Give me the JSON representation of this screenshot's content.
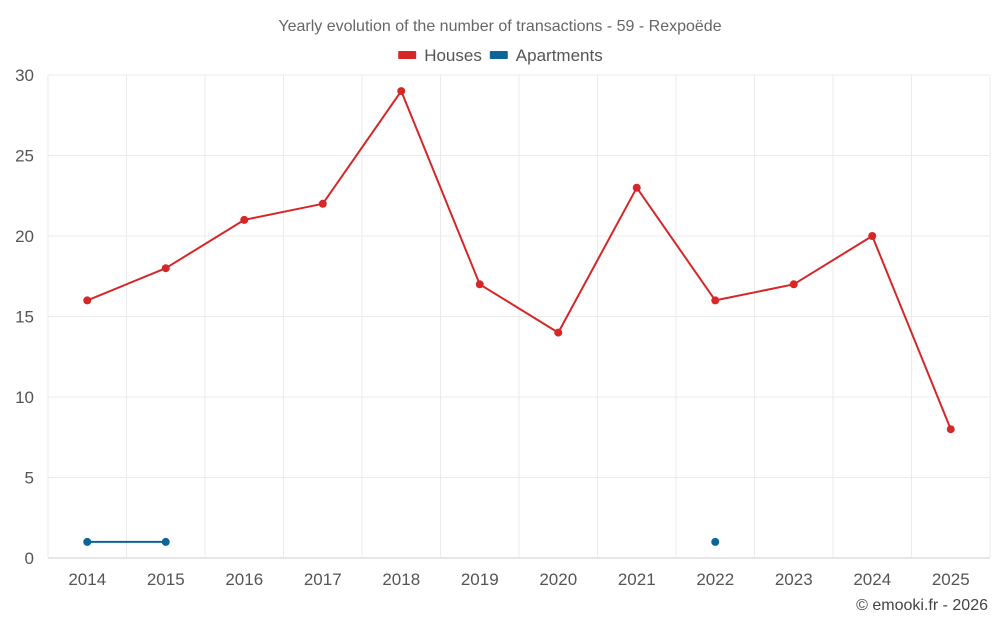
{
  "chart_data": {
    "type": "line",
    "title": "Yearly evolution of the number of transactions - 59 - Rexpoëde",
    "xlabel": "",
    "ylabel": "",
    "categories": [
      "2014",
      "2015",
      "2016",
      "2017",
      "2018",
      "2019",
      "2020",
      "2021",
      "2022",
      "2023",
      "2024",
      "2025"
    ],
    "ylim": [
      0,
      30
    ],
    "yticks": [
      0,
      5,
      10,
      15,
      20,
      25,
      30
    ],
    "grid": true,
    "legend_position": "top-center",
    "series": [
      {
        "name": "Houses",
        "color": "#d62728",
        "values": [
          16,
          18,
          21,
          22,
          29,
          17,
          14,
          23,
          16,
          17,
          20,
          8
        ]
      },
      {
        "name": "Apartments",
        "color": "#0b6598",
        "values": [
          1,
          1,
          null,
          null,
          null,
          null,
          null,
          null,
          1,
          null,
          null,
          null
        ]
      }
    ]
  },
  "credit": "© emooki.fr - 2026"
}
